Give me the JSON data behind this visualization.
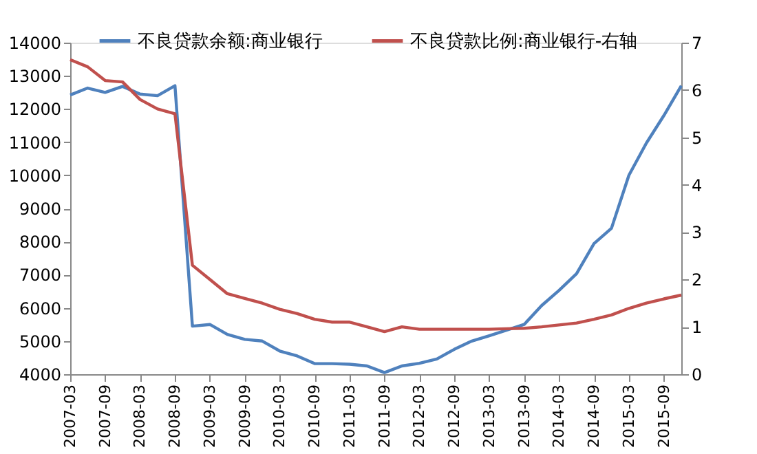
{
  "chart_data": {
    "type": "line",
    "categories": [
      "2007-03",
      null,
      "2007-09",
      null,
      "2008-03",
      null,
      "2008-09",
      null,
      "2009-03",
      null,
      "2009-09",
      null,
      "2010-03",
      null,
      "2010-09",
      null,
      "2011-03",
      null,
      "2011-09",
      null,
      "2012-03",
      null,
      "2012-09",
      null,
      "2013-03",
      null,
      "2013-09",
      null,
      "2014-03",
      null,
      "2014-09",
      null,
      "2015-03",
      null,
      "2015-09",
      null
    ],
    "series": [
      {
        "name": "不良贷款余额:商业银行",
        "color": "#4f81bd",
        "values": [
          12420,
          12630,
          12500,
          12680,
          12450,
          12400,
          12700,
          5450,
          5500,
          5200,
          5050,
          5000,
          4700,
          4550,
          4320,
          4320,
          4300,
          4250,
          4050,
          4250,
          4330,
          4460,
          4750,
          5000,
          5160,
          5330,
          5500,
          6070,
          6530,
          7030,
          7940,
          8400,
          10000,
          10970,
          11800,
          12700
        ]
      },
      {
        "name": "不良贷款比例:商业银行-右轴",
        "color": "#c0504d",
        "axis": "y2",
        "values": [
          6.64,
          6.49,
          6.2,
          6.17,
          5.8,
          5.6,
          5.5,
          2.3,
          2.0,
          1.7,
          1.6,
          1.5,
          1.37,
          1.28,
          1.16,
          1.1,
          1.1,
          1.0,
          0.9,
          1.0,
          0.95,
          0.95,
          0.95,
          0.95,
          0.95,
          0.96,
          0.97,
          1.0,
          1.04,
          1.08,
          1.16,
          1.25,
          1.39,
          1.5,
          1.59,
          1.67
        ]
      }
    ],
    "ylim": [
      4000,
      14000
    ],
    "yticks": [
      4000,
      5000,
      6000,
      7000,
      8000,
      9000,
      10000,
      11000,
      12000,
      13000,
      14000
    ],
    "y2lim": [
      0,
      7
    ],
    "y2ticks": [
      0,
      1,
      2,
      3,
      4,
      5,
      6,
      7
    ],
    "grid": false,
    "legend": "top",
    "marker": "none",
    "line_style": "solid"
  }
}
